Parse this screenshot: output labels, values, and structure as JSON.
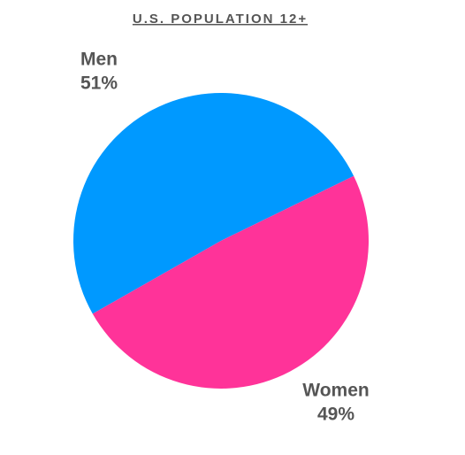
{
  "chart_data": {
    "type": "pie",
    "title": "U.S. POPULATION 12+",
    "categories": [
      "Men",
      "Women"
    ],
    "values": [
      51,
      49
    ],
    "value_labels": [
      "51%",
      "49%"
    ],
    "colors": [
      "#0099ff",
      "#ff3399"
    ]
  }
}
